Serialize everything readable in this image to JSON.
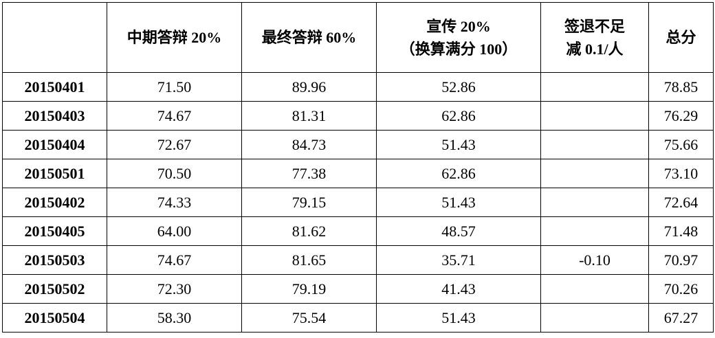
{
  "table": {
    "headers": [
      "",
      "中期答辩 20%",
      "最终答辩 60%",
      "宣传 20%\n（换算满分 100）",
      "签退不足\n减 0.1/人",
      "总分"
    ],
    "header_lines": {
      "promo_line1": "宣传 20%",
      "promo_line2": "（换算满分 100）",
      "penalty_line1": "签退不足",
      "penalty_line2": "减 0.1/人"
    },
    "rows": [
      [
        "20150401",
        "71.50",
        "89.96",
        "52.86",
        "",
        "78.85"
      ],
      [
        "20150403",
        "74.67",
        "81.31",
        "62.86",
        "",
        "76.29"
      ],
      [
        "20150404",
        "72.67",
        "84.73",
        "51.43",
        "",
        "75.66"
      ],
      [
        "20150501",
        "70.50",
        "77.38",
        "62.86",
        "",
        "73.10"
      ],
      [
        "20150402",
        "74.33",
        "79.15",
        "51.43",
        "",
        "72.64"
      ],
      [
        "20150405",
        "64.00",
        "81.62",
        "48.57",
        "",
        "71.48"
      ],
      [
        "20150503",
        "74.67",
        "81.65",
        "35.71",
        "-0.10",
        "70.97"
      ],
      [
        "20150502",
        "72.30",
        "79.19",
        "41.43",
        "",
        "70.26"
      ],
      [
        "20150504",
        "58.30",
        "75.54",
        "51.43",
        "",
        "67.27"
      ]
    ]
  }
}
